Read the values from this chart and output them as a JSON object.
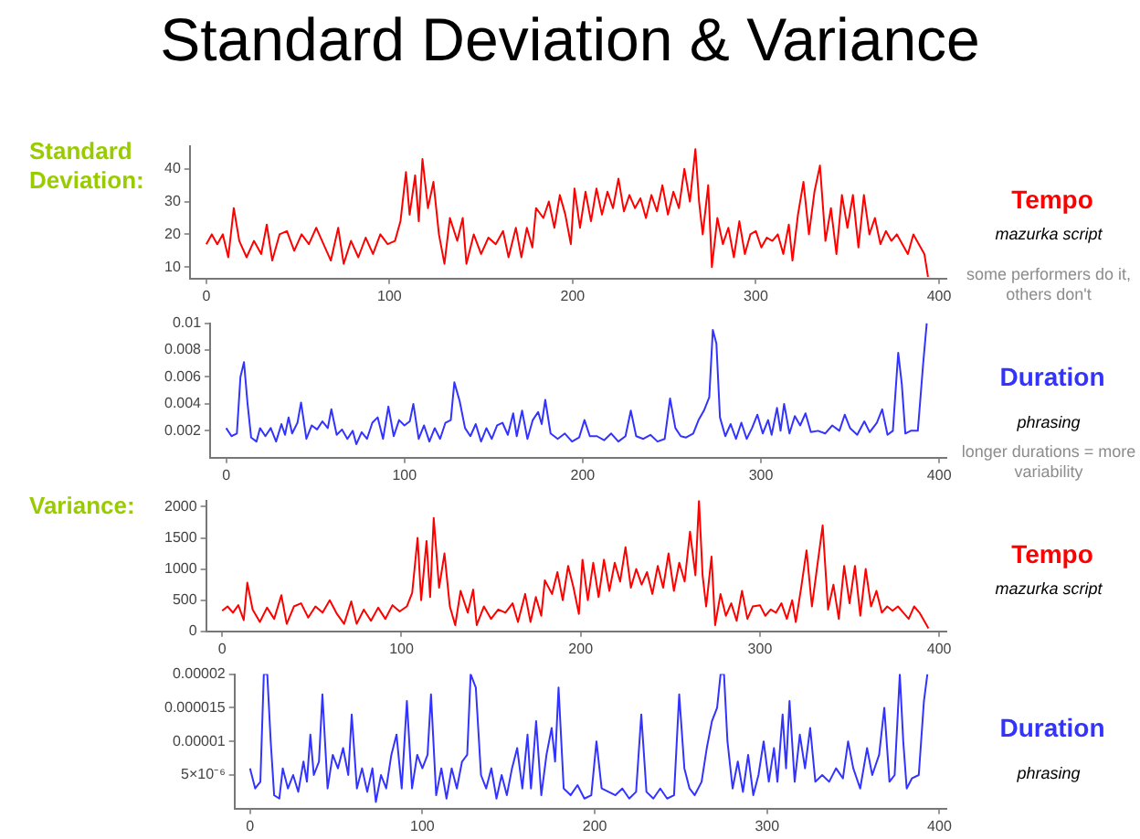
{
  "chart_data": [
    {
      "type": "line",
      "title": "Standard Deviation & Variance",
      "ylabel": "Standard Deviation:",
      "legend": "right",
      "marker": "none",
      "xlim": [
        -9,
        404
      ],
      "xticks": [
        0,
        100,
        200,
        300,
        400
      ],
      "ylim": [
        6.5,
        47
      ],
      "yticks": [
        10,
        20,
        30,
        40
      ],
      "annotations": [
        "mazurka script",
        "some performers do it, others don't"
      ],
      "x": [
        0,
        3,
        6,
        9,
        12,
        15,
        18,
        22,
        26,
        30,
        33,
        36,
        40,
        44,
        48,
        52,
        56,
        60,
        64,
        68,
        72,
        75,
        79,
        83,
        87,
        91,
        95,
        99,
        103,
        106,
        109,
        111,
        114,
        116,
        118,
        121,
        124,
        127,
        130,
        133,
        137,
        140,
        142,
        146,
        150,
        154,
        158,
        162,
        165,
        169,
        172,
        175,
        178,
        180,
        184,
        187,
        190,
        193,
        196,
        199,
        201,
        204,
        207,
        210,
        213,
        216,
        219,
        222,
        225,
        228,
        231,
        234,
        237,
        240,
        243,
        246,
        249,
        252,
        255,
        258,
        261,
        264,
        267,
        269,
        271,
        274,
        276,
        279,
        282,
        285,
        288,
        291,
        294,
        297,
        300,
        303,
        306,
        309,
        312,
        315,
        318,
        320,
        323,
        326,
        329,
        332,
        335,
        338,
        341,
        344,
        347,
        350,
        353,
        356,
        359,
        362,
        365,
        368,
        371,
        374,
        377,
        380,
        383,
        386,
        389,
        392,
        394
      ],
      "series": [
        {
          "name": "Tempo",
          "color": "#ff0000",
          "values": [
            17,
            20,
            17,
            20,
            13,
            28,
            18,
            13,
            18,
            14,
            23,
            12,
            20,
            21,
            15,
            20,
            17,
            22,
            17,
            12,
            22,
            11,
            18,
            13,
            19,
            14,
            20,
            17,
            18,
            24,
            39,
            26,
            38,
            24,
            43,
            28,
            36,
            20,
            11,
            25,
            18,
            25,
            11,
            20,
            14,
            19,
            17,
            21,
            13,
            22,
            13,
            22,
            16,
            28,
            25,
            30,
            22,
            32,
            26,
            17,
            34,
            22,
            33,
            24,
            34,
            26,
            33,
            28,
            37,
            27,
            32,
            28,
            31,
            25,
            32,
            27,
            35,
            26,
            33,
            28,
            40,
            30,
            46,
            30,
            20,
            35,
            10,
            25,
            17,
            22,
            13,
            24,
            14,
            20,
            21,
            16,
            19,
            18,
            20,
            14,
            23,
            12,
            26,
            36,
            20,
            33,
            41,
            18,
            28,
            14,
            32,
            22,
            32,
            16,
            32,
            20,
            25,
            17,
            21,
            18,
            20,
            17,
            14,
            20,
            17,
            14,
            7
          ]
        }
      ]
    },
    {
      "type": "line",
      "legend": "right",
      "marker": "none",
      "xlim": [
        -9,
        404
      ],
      "xticks": [
        0,
        100,
        200,
        300,
        400
      ],
      "ylim": [
        0,
        0.01
      ],
      "yticks": [
        0.002,
        0.004,
        0.006,
        0.008,
        0.01
      ],
      "annotations": [
        "phrasing",
        "longer durations = more variability"
      ],
      "x": [
        0,
        3,
        6,
        8,
        10,
        12,
        14,
        17,
        19,
        22,
        25,
        28,
        31,
        33,
        35,
        37,
        40,
        42,
        45,
        48,
        51,
        54,
        57,
        59,
        62,
        65,
        68,
        71,
        73,
        76,
        79,
        82,
        85,
        88,
        91,
        94,
        97,
        100,
        103,
        105,
        108,
        111,
        114,
        117,
        120,
        123,
        126,
        128,
        131,
        134,
        137,
        140,
        143,
        146,
        149,
        152,
        155,
        158,
        161,
        163,
        166,
        169,
        172,
        175,
        177,
        179,
        182,
        186,
        190,
        194,
        198,
        201,
        204,
        208,
        212,
        216,
        220,
        224,
        227,
        230,
        234,
        238,
        242,
        246,
        249,
        252,
        255,
        258,
        262,
        265,
        268,
        271,
        273,
        275,
        277,
        280,
        283,
        286,
        289,
        292,
        295,
        298,
        301,
        304,
        306,
        309,
        311,
        313,
        316,
        319,
        322,
        325,
        328,
        332,
        336,
        340,
        344,
        347,
        350,
        354,
        358,
        361,
        365,
        368,
        371,
        374,
        377,
        379,
        381,
        384,
        388,
        391,
        393
      ],
      "series": [
        {
          "name": "Duration",
          "color": "#3333ff",
          "values": [
            0.0022,
            0.0016,
            0.0018,
            0.006,
            0.0071,
            0.004,
            0.0015,
            0.0012,
            0.0022,
            0.0016,
            0.0022,
            0.0012,
            0.0025,
            0.0017,
            0.003,
            0.0018,
            0.0026,
            0.0041,
            0.0014,
            0.0024,
            0.0021,
            0.0027,
            0.0022,
            0.0036,
            0.0017,
            0.0021,
            0.0014,
            0.002,
            0.001,
            0.0019,
            0.0014,
            0.0026,
            0.003,
            0.0014,
            0.0038,
            0.0016,
            0.0028,
            0.0024,
            0.0027,
            0.004,
            0.0014,
            0.0024,
            0.0012,
            0.0022,
            0.0014,
            0.0026,
            0.0028,
            0.0056,
            0.0042,
            0.0022,
            0.0016,
            0.0025,
            0.0012,
            0.0022,
            0.0014,
            0.0024,
            0.0026,
            0.0017,
            0.0033,
            0.0016,
            0.0035,
            0.0014,
            0.0028,
            0.0034,
            0.0025,
            0.0043,
            0.0018,
            0.0014,
            0.0018,
            0.0012,
            0.0015,
            0.0028,
            0.0016,
            0.0016,
            0.0013,
            0.0018,
            0.0012,
            0.0016,
            0.0035,
            0.0016,
            0.0014,
            0.0017,
            0.0012,
            0.0014,
            0.0044,
            0.0022,
            0.0016,
            0.0015,
            0.0018,
            0.0028,
            0.0035,
            0.0045,
            0.0095,
            0.0085,
            0.003,
            0.0016,
            0.0025,
            0.0014,
            0.0026,
            0.0014,
            0.0022,
            0.0032,
            0.0018,
            0.0028,
            0.0017,
            0.0037,
            0.002,
            0.004,
            0.0018,
            0.0031,
            0.0024,
            0.0033,
            0.0019,
            0.002,
            0.0018,
            0.0024,
            0.002,
            0.0032,
            0.0022,
            0.0017,
            0.0027,
            0.0019,
            0.0026,
            0.0036,
            0.0017,
            0.002,
            0.0078,
            0.0055,
            0.0018,
            0.002,
            0.002,
            0.007,
            0.01
          ]
        }
      ]
    },
    {
      "type": "line",
      "ylabel": "Variance:",
      "legend": "right",
      "marker": "none",
      "xlim": [
        -9,
        404
      ],
      "xticks": [
        0,
        100,
        200,
        300,
        400
      ],
      "ylim": [
        0,
        2100
      ],
      "yticks": [
        0,
        500,
        1000,
        1500,
        2000
      ],
      "annotations": [
        "mazurka script"
      ],
      "x": [
        0,
        3,
        6,
        9,
        12,
        14,
        17,
        21,
        25,
        29,
        33,
        36,
        40,
        44,
        48,
        52,
        56,
        60,
        64,
        68,
        72,
        75,
        79,
        83,
        87,
        91,
        95,
        99,
        103,
        106,
        109,
        111,
        114,
        116,
        118,
        121,
        124,
        127,
        130,
        133,
        137,
        140,
        142,
        146,
        150,
        154,
        158,
        162,
        165,
        169,
        172,
        175,
        178,
        180,
        184,
        187,
        190,
        193,
        196,
        199,
        201,
        204,
        207,
        210,
        213,
        216,
        219,
        222,
        225,
        228,
        231,
        234,
        237,
        240,
        243,
        246,
        249,
        252,
        255,
        258,
        261,
        264,
        266,
        268,
        270,
        273,
        275,
        278,
        281,
        284,
        287,
        290,
        293,
        296,
        300,
        303,
        306,
        309,
        312,
        315,
        318,
        320,
        323,
        326,
        329,
        332,
        335,
        338,
        341,
        344,
        347,
        350,
        353,
        356,
        359,
        362,
        365,
        368,
        371,
        374,
        377,
        380,
        383,
        386,
        389,
        392,
        394
      ],
      "series": [
        {
          "name": "Tempo",
          "color": "#ff0000",
          "values": [
            330,
            400,
            300,
            420,
            180,
            780,
            350,
            150,
            380,
            200,
            580,
            120,
            400,
            450,
            220,
            400,
            300,
            500,
            280,
            120,
            480,
            120,
            350,
            170,
            380,
            200,
            420,
            320,
            400,
            620,
            1500,
            500,
            1450,
            550,
            1820,
            700,
            1250,
            400,
            100,
            650,
            300,
            670,
            100,
            400,
            200,
            350,
            300,
            450,
            150,
            600,
            150,
            550,
            250,
            820,
            600,
            950,
            500,
            1050,
            700,
            280,
            1150,
            500,
            1100,
            550,
            1150,
            650,
            1100,
            800,
            1350,
            700,
            1000,
            750,
            950,
            600,
            1050,
            700,
            1250,
            650,
            1100,
            800,
            1600,
            900,
            2100,
            900,
            400,
            1200,
            100,
            600,
            250,
            450,
            170,
            650,
            200,
            400,
            420,
            250,
            350,
            300,
            450,
            200,
            500,
            150,
            700,
            1300,
            400,
            1050,
            1700,
            350,
            750,
            200,
            1050,
            450,
            1050,
            250,
            1000,
            400,
            650,
            300,
            400,
            330,
            400,
            300,
            200,
            400,
            300,
            150,
            50
          ]
        }
      ]
    },
    {
      "type": "line",
      "legend": "right",
      "marker": "none",
      "xlim": [
        -9,
        404
      ],
      "xticks": [
        0,
        100,
        200,
        300,
        400
      ],
      "ylim": [
        0,
        2e-05
      ],
      "yticks": [
        {
          "value": 5e-06,
          "label": "5×10⁻⁶"
        },
        {
          "value": 1e-05,
          "label": "0.00001"
        },
        {
          "value": 1.5e-05,
          "label": "0.000015"
        },
        {
          "value": 2e-05,
          "label": "0.00002"
        }
      ],
      "annotations": [
        "phrasing"
      ],
      "x": [
        0,
        3,
        6,
        8,
        10,
        12,
        14,
        17,
        19,
        22,
        25,
        28,
        31,
        33,
        35,
        37,
        40,
        42,
        45,
        48,
        51,
        54,
        57,
        59,
        62,
        65,
        68,
        71,
        73,
        76,
        79,
        82,
        85,
        88,
        91,
        94,
        97,
        100,
        103,
        105,
        108,
        111,
        114,
        117,
        120,
        123,
        126,
        128,
        131,
        134,
        137,
        140,
        143,
        146,
        149,
        152,
        155,
        158,
        161,
        163,
        166,
        169,
        172,
        175,
        177,
        179,
        182,
        186,
        190,
        194,
        198,
        201,
        204,
        208,
        212,
        216,
        220,
        224,
        227,
        230,
        234,
        238,
        242,
        246,
        249,
        252,
        255,
        258,
        262,
        265,
        268,
        271,
        273,
        275,
        277,
        280,
        283,
        286,
        289,
        292,
        295,
        298,
        301,
        304,
        306,
        309,
        311,
        313,
        316,
        319,
        322,
        325,
        328,
        332,
        336,
        340,
        344,
        347,
        350,
        354,
        358,
        361,
        365,
        368,
        371,
        374,
        377,
        379,
        381,
        384,
        388,
        391,
        393
      ],
      "series": [
        {
          "name": "Duration",
          "color": "#3333ff",
          "values": [
            6e-06,
            3e-06,
            4e-06,
            2e-05,
            2e-05,
            1e-05,
            2e-06,
            1.5e-06,
            6e-06,
            3e-06,
            5e-06,
            2.5e-06,
            7e-06,
            4e-06,
            1.1e-05,
            5e-06,
            7e-06,
            1.7e-05,
            3e-06,
            8e-06,
            6e-06,
            9e-06,
            5e-06,
            1.4e-05,
            3e-06,
            6e-06,
            2.5e-06,
            6e-06,
            1e-06,
            5e-06,
            3e-06,
            8e-06,
            1.1e-05,
            3e-06,
            1.6e-05,
            3e-06,
            8e-06,
            6e-06,
            8e-06,
            1.7e-05,
            2e-06,
            6e-06,
            1.5e-06,
            6e-06,
            3e-06,
            7e-06,
            8e-06,
            2e-05,
            1.8e-05,
            5e-06,
            3e-06,
            6e-06,
            1.5e-06,
            5e-06,
            2e-06,
            6e-06,
            9e-06,
            3e-06,
            1.1e-05,
            3e-06,
            1.3e-05,
            2e-06,
            8e-06,
            1.2e-05,
            7e-06,
            1.8e-05,
            3e-06,
            2e-06,
            3.5e-06,
            1.5e-06,
            2e-06,
            1e-05,
            3e-06,
            2.5e-06,
            2e-06,
            3e-06,
            1.5e-06,
            2.5e-06,
            1.4e-05,
            2.5e-06,
            1.5e-06,
            3e-06,
            1.5e-06,
            2e-06,
            1.7e-05,
            6e-06,
            3e-06,
            2e-06,
            4e-06,
            9e-06,
            1.3e-05,
            1.5e-05,
            2e-05,
            2e-05,
            1e-05,
            3e-06,
            7e-06,
            2.5e-06,
            8e-06,
            2e-06,
            5e-06,
            1e-05,
            4e-06,
            9e-06,
            4e-06,
            1.4e-05,
            6e-06,
            1.6e-05,
            4e-06,
            1.1e-05,
            6e-06,
            1.2e-05,
            4e-06,
            5e-06,
            4e-06,
            6e-06,
            4.5e-06,
            1e-05,
            6e-06,
            3e-06,
            9e-06,
            5e-06,
            8e-06,
            1.5e-05,
            4e-06,
            5e-06,
            2e-05,
            1e-05,
            3e-06,
            4.5e-06,
            5e-06,
            1.6e-05,
            2e-05
          ]
        }
      ]
    }
  ]
}
